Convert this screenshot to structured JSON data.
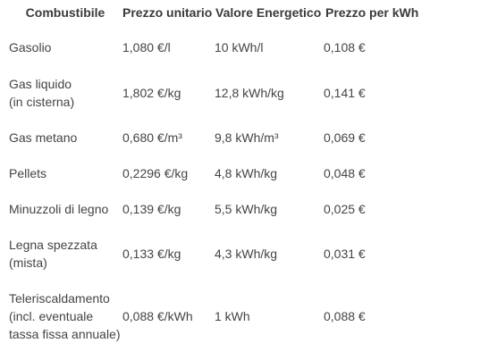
{
  "table": {
    "headers": [
      "Combustibile",
      "Prezzo unitario",
      "Valore Energetico",
      "Prezzo per kWh"
    ],
    "rows": [
      {
        "fuel": [
          "Gasolio"
        ],
        "unit_price": "1,080 €/l",
        "energy_value": "10 kWh/l",
        "price_per_kwh": "0,108 €"
      },
      {
        "fuel": [
          "Gas liquido",
          "(in cisterna)"
        ],
        "unit_price": "1,802 €/kg",
        "energy_value": "12,8 kWh/kg",
        "price_per_kwh": "0,141 €"
      },
      {
        "fuel": [
          "Gas metano"
        ],
        "unit_price": "0,680 €/m³",
        "energy_value": "9,8 kWh/m³",
        "price_per_kwh": "0,069 €"
      },
      {
        "fuel": [
          "Pellets"
        ],
        "unit_price": "0,2296 €/kg",
        "energy_value": "4,8 kWh/kg",
        "price_per_kwh": "0,048 €"
      },
      {
        "fuel": [
          "Minuzzoli di legno"
        ],
        "unit_price": "0,139 €/kg",
        "energy_value": "5,5 kWh/kg",
        "price_per_kwh": "0,025 €"
      },
      {
        "fuel": [
          "Legna spezzata",
          "(mista)"
        ],
        "unit_price": "0,133 €/kg",
        "energy_value": "4,3 kWh/kg",
        "price_per_kwh": "0,031 €"
      },
      {
        "fuel": [
          "Teleriscaldamento",
          "(incl. eventuale",
          "tassa fissa annuale)"
        ],
        "unit_price": "0,088 €/kWh",
        "energy_value": "1 kWh",
        "price_per_kwh": "0,088 €"
      }
    ]
  }
}
